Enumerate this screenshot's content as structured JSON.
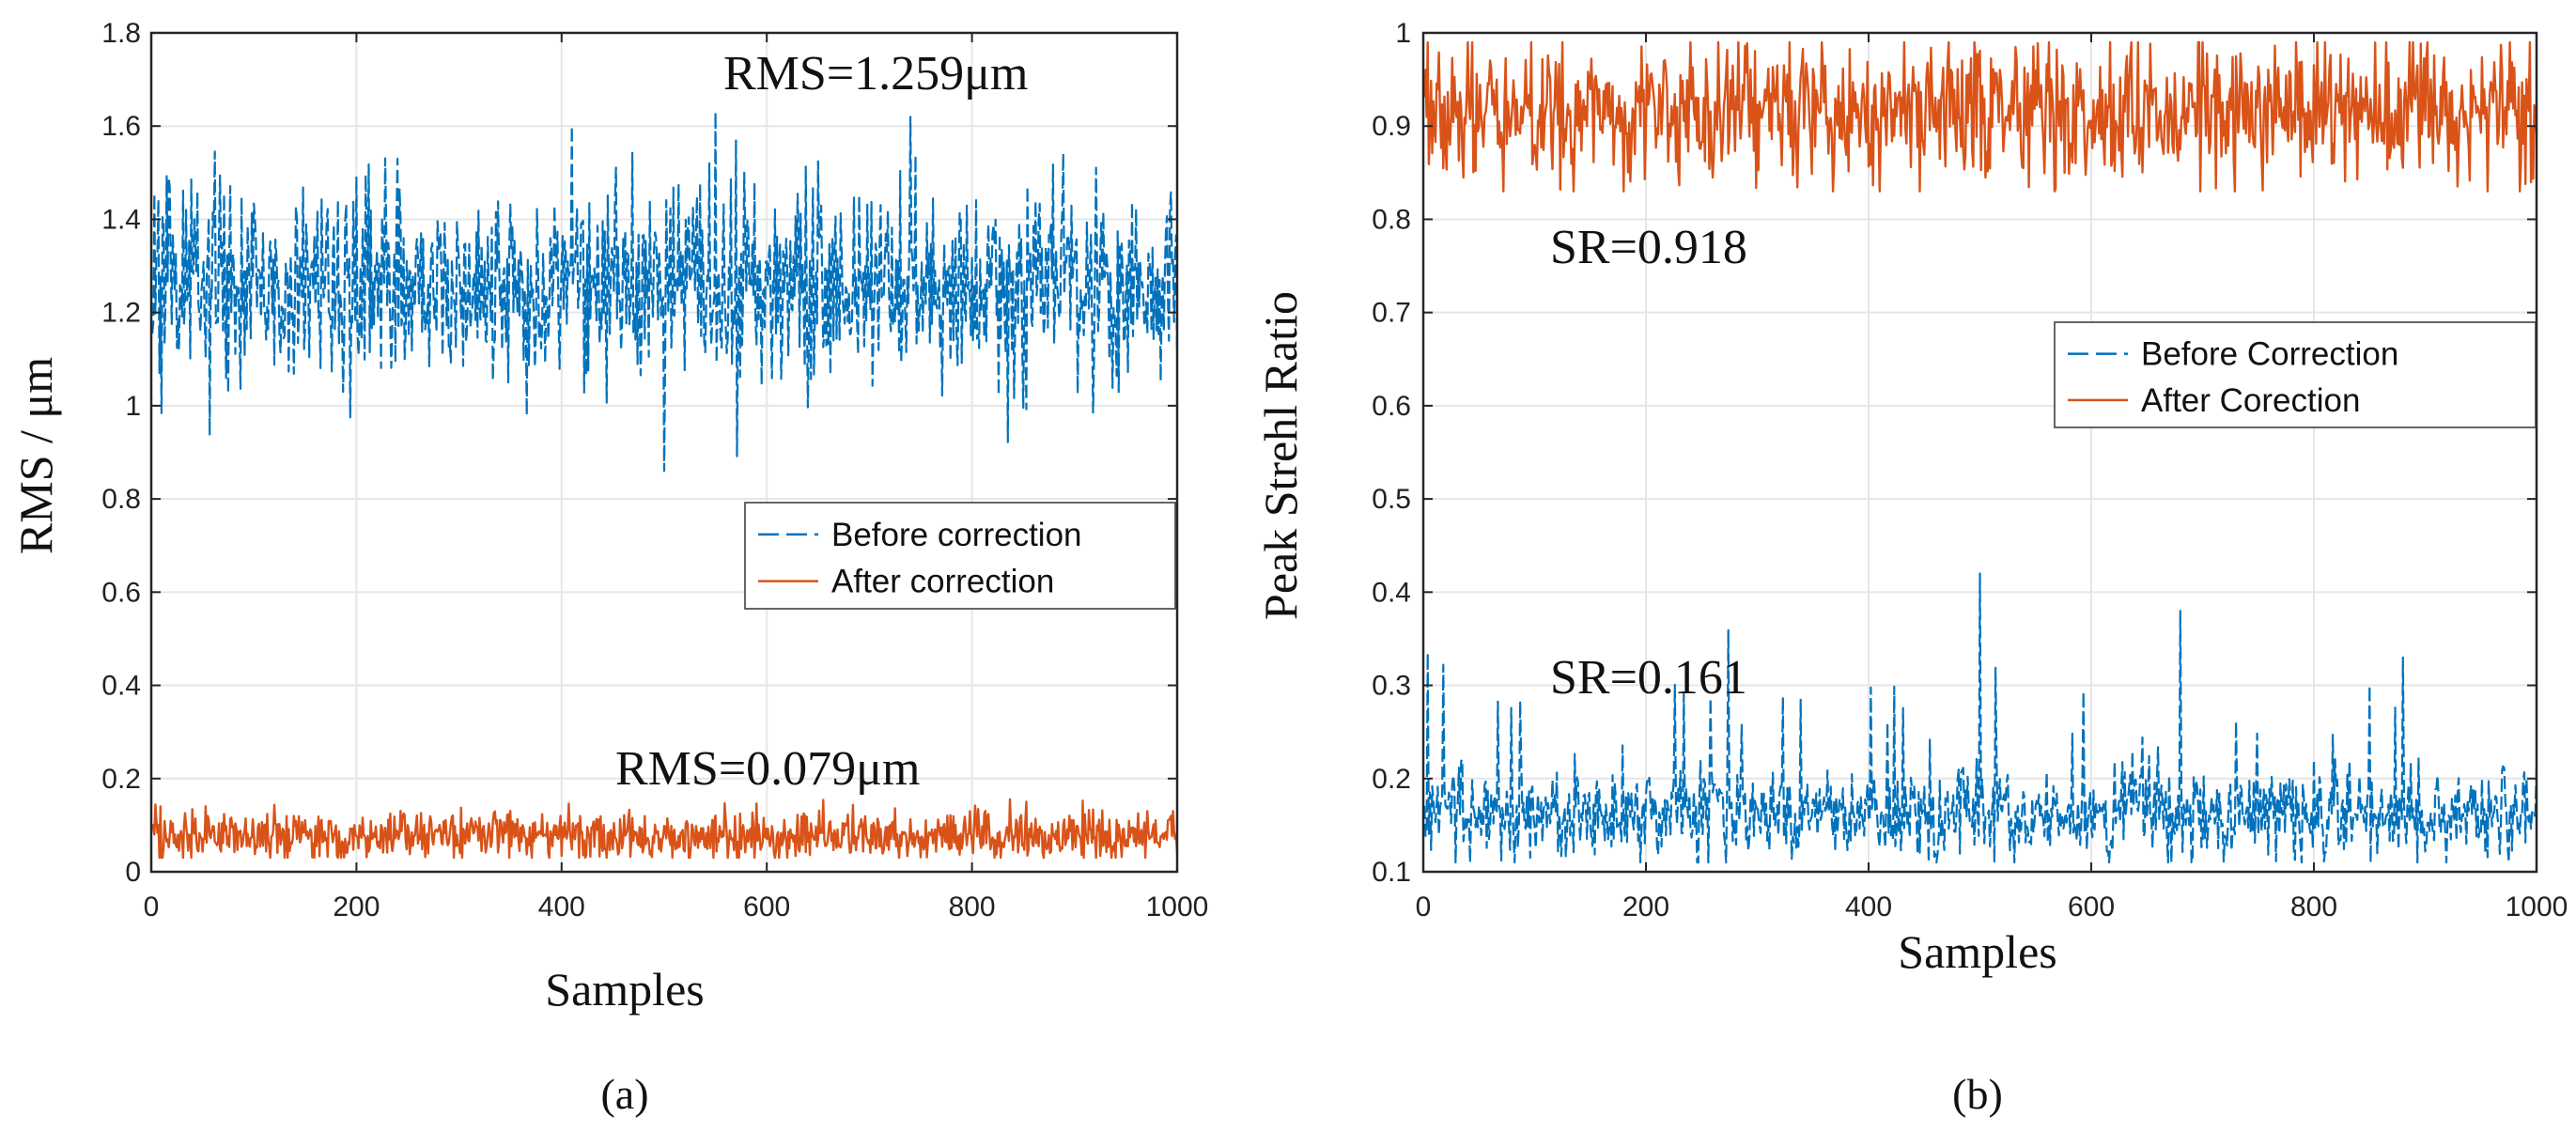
{
  "colors": {
    "before": "#0072BD",
    "after": "#D95319",
    "grid": "#E6E6E6",
    "frame": "#262626"
  },
  "chart_data": [
    {
      "type": "line",
      "panel_label": "(a)",
      "xlabel": "Samples",
      "ylabel": "RMS / μm",
      "xlim": [
        0,
        1000
      ],
      "ylim": [
        0,
        1.8
      ],
      "xticks": [
        "0",
        "200",
        "400",
        "600",
        "800",
        "1000"
      ],
      "yticks": [
        "0",
        "0.2",
        "0.4",
        "0.6",
        "0.8",
        "1",
        "1.2",
        "1.4",
        "1.6",
        "1.8"
      ],
      "legend": {
        "position": "center-right",
        "entries": [
          "Before correction",
          "After correction"
        ]
      },
      "annotations": [
        {
          "text": "RMS=1.259μm",
          "x": 550,
          "y": 1.7
        },
        {
          "text": "RMS=0.079μm",
          "x": 420,
          "y": 0.19
        }
      ],
      "series": [
        {
          "name": "Before correction",
          "style": "dashed",
          "n": 1000,
          "mean": 1.259,
          "min": 0.86,
          "max": 1.63
        },
        {
          "name": "After correction",
          "style": "solid",
          "n": 1000,
          "mean": 0.079,
          "min": 0.03,
          "max": 0.16
        }
      ]
    },
    {
      "type": "line",
      "panel_label": "(b)",
      "xlabel": "Samples",
      "ylabel": "Peak Strehl Ratio",
      "xlim": [
        0,
        1000
      ],
      "ylim": [
        0.1,
        1
      ],
      "xticks": [
        "0",
        "200",
        "400",
        "600",
        "800",
        "1000"
      ],
      "yticks": [
        "0.1",
        "0.2",
        "0.3",
        "0.4",
        "0.5",
        "0.6",
        "0.7",
        "0.8",
        "0.9",
        "1"
      ],
      "legend": {
        "position": "upper-right",
        "entries": [
          "Before Correction",
          "After Corection"
        ]
      },
      "annotations": [
        {
          "text": "SR=0.918",
          "x": 225,
          "y": 0.805
        },
        {
          "text": "SR=0.161",
          "x": 225,
          "y": 0.325
        }
      ],
      "series": [
        {
          "name": "Before Correction",
          "style": "dashed",
          "n": 1000,
          "mean": 0.161,
          "min": 0.11,
          "max": 0.42
        },
        {
          "name": "After Corection",
          "style": "solid",
          "n": 1000,
          "mean": 0.918,
          "min": 0.83,
          "max": 0.99
        }
      ]
    }
  ]
}
